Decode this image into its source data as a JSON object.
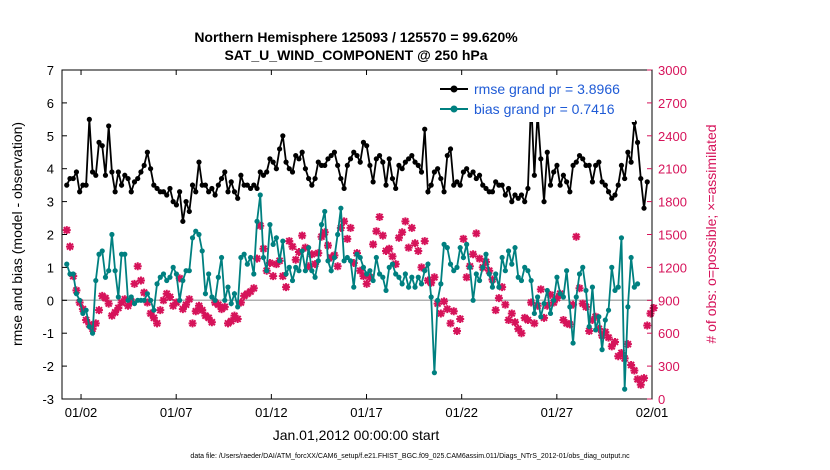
{
  "chart_data": {
    "type": "line",
    "title": "Northern Hemisphere 125093 / 125570 = 99.620%",
    "subtitle": "SAT_U_WIND_COMPONENT @ 250 hPa",
    "xlabel": "Jan.01,2012 00:00:00 start",
    "ylabel_left": "rmse and bias (model - observation)",
    "ylabel_right": "# of obs: o=possible; ×=assimilated",
    "footer": "data file: /Users/raeder/DAI/ATM_forcXX/CAM6_setup/f.e21.FHIST_BGC.f09_025.CAM6assim.011/Diags_NTrS_2012-01/obs_diag_output.nc",
    "xlim": [
      0,
      31
    ],
    "ylim_left": [
      -3,
      7
    ],
    "ylim_right": [
      0,
      3000
    ],
    "x_ticks": [
      1,
      6,
      11,
      16,
      21,
      26,
      31
    ],
    "x_tick_labels": [
      "01/02",
      "01/07",
      "01/12",
      "01/17",
      "01/22",
      "01/27",
      "02/01"
    ],
    "y_ticks_left": [
      "-3",
      "-2",
      "-1",
      "0",
      "1",
      "2",
      "3",
      "4",
      "5",
      "6",
      "7"
    ],
    "y_ticks_right": [
      "0",
      "300",
      "600",
      "900",
      "1200",
      "1500",
      "1800",
      "2100",
      "2400",
      "2700",
      "3000"
    ],
    "grid": false,
    "legend_position": "top-right",
    "colors": {
      "rmse": "#000000",
      "bias": "#008080",
      "obs": "#d6135a",
      "zero_line": "#b0b0b0"
    },
    "series": [
      {
        "name": "rmse grand pr = 3.8966",
        "axis": "left",
        "values": [
          3.5,
          3.7,
          3.7,
          3.9,
          3.3,
          3.5,
          3.5,
          5.5,
          3.9,
          3.8,
          4.8,
          4.7,
          3.8,
          5.3,
          3.9,
          3.3,
          3.9,
          3.5,
          3.8,
          3.7,
          3.3,
          3.6,
          3.7,
          3.9,
          4.1,
          4.5,
          4.0,
          3.5,
          3.4,
          3.3,
          3.3,
          3.2,
          3.4,
          3.0,
          2.9,
          3.3,
          2.4,
          3.0,
          2.7,
          3.5,
          3.3,
          4.2,
          3.5,
          3.5,
          3.3,
          3.4,
          3.2,
          3.5,
          3.7,
          3.9,
          3.3,
          3.6,
          3.3,
          3.1,
          3.8,
          3.5,
          3.5,
          3.4,
          3.5,
          3.4,
          3.9,
          3.8,
          3.9,
          4.3,
          4.2,
          4.0,
          4.6,
          5.0,
          4.2,
          4.0,
          3.9,
          4.4,
          4.3,
          4.5,
          4.0,
          3.7,
          3.5,
          3.7,
          4.2,
          4.1,
          4.1,
          4.3,
          4.4,
          4.5,
          4.1,
          3.7,
          3.4,
          4.1,
          4.3,
          4.5,
          4.4,
          4.2,
          4.8,
          4.7,
          4.1,
          3.6,
          4.3,
          4.4,
          4.2,
          3.5,
          4.3,
          3.7,
          3.4,
          4.1,
          4.0,
          4.2,
          4.3,
          4.4,
          4.2,
          4.1,
          3.9,
          5.2,
          3.3,
          3.5,
          3.9,
          4.0,
          3.7,
          3.3,
          4.4,
          4.6,
          3.5,
          3.6,
          3.5,
          3.9,
          4.0,
          3.8,
          3.9,
          3.7,
          3.8,
          3.5,
          3.4,
          3.3,
          3.3,
          3.6,
          3.5,
          3.5,
          3.2,
          3.4,
          3.0,
          3.2,
          3.1,
          3.2,
          3.0,
          3.4,
          6.1,
          3.8,
          5.7,
          4.3,
          3.0,
          4.5,
          3.5,
          3.9,
          4.1,
          3.5,
          3.8,
          3.6,
          3.3,
          4.1,
          4.2,
          4.4,
          4.3,
          4.1,
          4.1,
          3.6,
          4.1,
          4.2,
          3.6,
          3.5,
          3.3,
          3.1,
          3.2,
          3.5,
          4.1,
          3.7,
          4.5,
          4.2,
          5.4,
          4.8,
          3.7,
          2.8,
          3.6
        ]
      },
      {
        "name": "bias grand pr = 0.7416",
        "axis": "left",
        "values": [
          1.1,
          0.8,
          0.8,
          0.2,
          0.0,
          -0.4,
          -0.3,
          -0.8,
          -1.0,
          0.6,
          1.4,
          1.5,
          0.7,
          0.9,
          2.0,
          0.9,
          0.1,
          1.4,
          1.4,
          0.0,
          0.1,
          -0.1,
          0.0,
          0.0,
          0.0,
          0.2,
          0.0,
          -0.3,
          0.5,
          0.7,
          0.8,
          0.6,
          0.7,
          1.0,
          0.8,
          0.0,
          0.6,
          0.9,
          0.9,
          1.9,
          2.1,
          2.0,
          1.5,
          0.2,
          0.8,
          0.1,
          0.0,
          0.7,
          1.3,
          0.0,
          0.4,
          -0.1,
          0.2,
          -0.2,
          1.3,
          1.4,
          1.1,
          1.3,
          0.8,
          2.4,
          3.2,
          1.3,
          0.9,
          2.3,
          1.7,
          1.9,
          1.2,
          1.8,
          0.8,
          1.0,
          0.6,
          1.0,
          0.9,
          1.5,
          0.9,
          1.6,
          0.9,
          0.7,
          1.2,
          2.3,
          2.7,
          1.2,
          0.9,
          1.3,
          2.0,
          2.8,
          1.2,
          1.3,
          1.2,
          0.4,
          1.4,
          1.3,
          1.0,
          0.8,
          0.9,
          0.6,
          1.3,
          0.8,
          0.7,
          0.3,
          1.0,
          1.1,
          0.8,
          0.7,
          0.5,
          0.8,
          0.4,
          0.7,
          0.4,
          0.7,
          0.5,
          0.9,
          1.1,
          0.1,
          -2.2,
          0.0,
          0.5,
          1.7,
          1.6,
          1.1,
          0.9,
          1.0,
          1.6,
          1.3,
          1.7,
          1.0,
          0.0,
          0.8,
          0.6,
          1.0,
          1.4,
          0.8,
          0.4,
          0.8,
          0.4,
          1.3,
          0.9,
          1.5,
          1.1,
          1.6,
          0.7,
          0.6,
          1.0,
          0.9,
          0.6,
          -0.4,
          0.1,
          -0.5,
          -0.1,
          0.3,
          -0.4,
          0.0,
          0.7,
          0.2,
          0.1,
          0.9,
          -0.2,
          -1.3,
          0.1,
          0.8,
          1.0,
          0.3,
          -0.8,
          0.4,
          -0.9,
          -0.5,
          -1.5,
          -0.6,
          -0.3,
          1.0,
          0.3,
          0.4,
          1.9,
          -2.7,
          -0.2,
          1.3,
          0.4,
          0.5
        ]
      },
      {
        "name": "obs assimilated",
        "axis": "right",
        "marker": "x",
        "values": [
          1540,
          1390,
          1120,
          990,
          880,
          820,
          720,
          680,
          640,
          690,
          810,
          940,
          920,
          870,
          760,
          790,
          830,
          880,
          910,
          850,
          890,
          1050,
          1210,
          1080,
          970,
          880,
          780,
          740,
          690,
          810,
          900,
          960,
          930,
          850,
          880,
          1100,
          820,
          860,
          910,
          690,
          800,
          850,
          810,
          760,
          740,
          700,
          880,
          860,
          820,
          840,
          690,
          710,
          760,
          730,
          880,
          940,
          960,
          980,
          1010,
          1280,
          1580,
          1370,
          1170,
          1240,
          1120,
          1230,
          1260,
          1120,
          1020,
          1440,
          1390,
          1270,
          1340,
          1490,
          1380,
          1210,
          1320,
          1230,
          1330,
          1480,
          1520,
          1400,
          1290,
          1310,
          1210,
          1560,
          1620,
          1460,
          1560,
          1240,
          1330,
          1170,
          1120,
          1050,
          1110,
          1410,
          1530,
          1660,
          1490,
          1350,
          1370,
          1300,
          1230,
          1470,
          1520,
          1620,
          1380,
          1560,
          1420,
          1350,
          1200,
          1440,
          1080,
          1060,
          1110,
          870,
          780,
          890,
          820,
          690,
          800,
          620,
          730,
          1460,
          1110,
          1210,
          1320,
          1510,
          1280,
          1200,
          1250,
          1170,
          1090,
          810,
          920,
          1020,
          860,
          720,
          780,
          700,
          640,
          600,
          740,
          720,
          880,
          690,
          850,
          1000,
          740,
          850,
          950,
          880,
          920,
          960,
          720,
          690,
          680,
          860,
          1480,
          1010,
          870,
          840,
          620,
          720,
          750,
          640,
          580,
          610,
          560,
          480,
          520,
          390,
          420,
          370,
          500,
          310,
          260,
          180,
          130,
          190,
          670,
          780,
          830
        ]
      }
    ]
  }
}
